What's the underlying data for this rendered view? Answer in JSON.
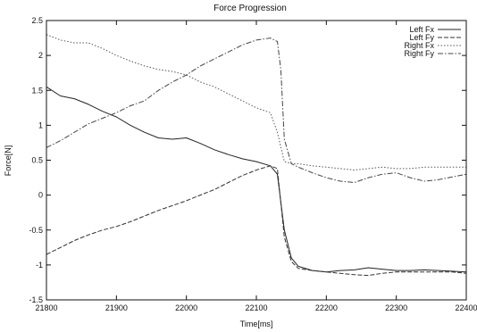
{
  "chart_data": {
    "type": "line",
    "title": "Force Progression",
    "xlabel": "Time[ms]",
    "ylabel": "Force[N]",
    "xlim": [
      21800,
      22400
    ],
    "ylim": [
      -1.5,
      2.5
    ],
    "xticks": [
      21800,
      21900,
      22000,
      22100,
      22200,
      22300,
      22400
    ],
    "yticks": [
      -1.5,
      -1,
      -0.5,
      0,
      0.5,
      1,
      1.5,
      2,
      2.5
    ],
    "xtick_labels": [
      "21800",
      "21900",
      "22000",
      "22100",
      "22200",
      "22300",
      "22400"
    ],
    "ytick_labels": [
      "-1.5",
      "-1",
      "-0.5",
      "0",
      "0.5",
      "1",
      "1.5",
      "2",
      "2.5"
    ],
    "grid": false,
    "legend_position": "top-right",
    "series": [
      {
        "name": "Left Fx",
        "dash": "solid",
        "color": "#222222",
        "x": [
          21800,
          21820,
          21840,
          21860,
          21880,
          21900,
          21920,
          21940,
          21960,
          21980,
          22000,
          22020,
          22040,
          22060,
          22080,
          22100,
          22120,
          22130,
          22140,
          22150,
          22160,
          22180,
          22200,
          22220,
          22240,
          22260,
          22280,
          22300,
          22320,
          22340,
          22360,
          22380,
          22400
        ],
        "y": [
          1.55,
          1.42,
          1.38,
          1.3,
          1.2,
          1.12,
          1.0,
          0.9,
          0.82,
          0.8,
          0.82,
          0.74,
          0.65,
          0.58,
          0.52,
          0.48,
          0.42,
          0.3,
          -0.5,
          -0.9,
          -1.02,
          -1.08,
          -1.1,
          -1.08,
          -1.07,
          -1.04,
          -1.06,
          -1.08,
          -1.08,
          -1.07,
          -1.08,
          -1.09,
          -1.1
        ]
      },
      {
        "name": "Left Fy",
        "dash": "dashed",
        "color": "#333333",
        "x": [
          21800,
          21820,
          21840,
          21860,
          21880,
          21900,
          21920,
          21940,
          21960,
          21980,
          22000,
          22020,
          22040,
          22060,
          22080,
          22100,
          22120,
          22130,
          22140,
          22150,
          22160,
          22180,
          22200,
          22220,
          22240,
          22260,
          22280,
          22300,
          22320,
          22340,
          22360,
          22380,
          22400
        ],
        "y": [
          -0.85,
          -0.75,
          -0.65,
          -0.57,
          -0.5,
          -0.45,
          -0.38,
          -0.3,
          -0.22,
          -0.15,
          -0.08,
          0.0,
          0.08,
          0.18,
          0.28,
          0.36,
          0.42,
          0.38,
          -0.6,
          -0.95,
          -1.05,
          -1.08,
          -1.1,
          -1.12,
          -1.14,
          -1.15,
          -1.12,
          -1.1,
          -1.1,
          -1.1,
          -1.1,
          -1.1,
          -1.12
        ]
      },
      {
        "name": "Right Fx",
        "dash": "dotted",
        "color": "#555555",
        "x": [
          21800,
          21820,
          21840,
          21860,
          21880,
          21900,
          21920,
          21940,
          21960,
          21980,
          22000,
          22020,
          22040,
          22060,
          22080,
          22100,
          22120,
          22130,
          22140,
          22150,
          22160,
          22180,
          22200,
          22220,
          22240,
          22260,
          22280,
          22300,
          22320,
          22340,
          22360,
          22380,
          22400
        ],
        "y": [
          2.3,
          2.22,
          2.18,
          2.18,
          2.1,
          2.0,
          1.92,
          1.85,
          1.8,
          1.77,
          1.72,
          1.62,
          1.55,
          1.45,
          1.35,
          1.25,
          1.18,
          0.9,
          0.48,
          0.45,
          0.45,
          0.42,
          0.4,
          0.38,
          0.36,
          0.38,
          0.4,
          0.38,
          0.38,
          0.4,
          0.4,
          0.4,
          0.4
        ]
      },
      {
        "name": "Right Fy",
        "dash": "dashdot",
        "color": "#444444",
        "x": [
          21800,
          21820,
          21840,
          21860,
          21880,
          21900,
          21920,
          21940,
          21960,
          21980,
          22000,
          22020,
          22040,
          22060,
          22080,
          22100,
          22120,
          22130,
          22135,
          22140,
          22150,
          22160,
          22180,
          22200,
          22220,
          22240,
          22260,
          22280,
          22300,
          22320,
          22340,
          22360,
          22380,
          22400
        ],
        "y": [
          0.68,
          0.78,
          0.9,
          1.02,
          1.1,
          1.18,
          1.28,
          1.35,
          1.5,
          1.62,
          1.72,
          1.85,
          1.95,
          2.05,
          2.15,
          2.22,
          2.25,
          2.2,
          1.8,
          0.8,
          0.45,
          0.4,
          0.32,
          0.25,
          0.2,
          0.18,
          0.25,
          0.3,
          0.32,
          0.25,
          0.2,
          0.22,
          0.26,
          0.3
        ]
      }
    ]
  }
}
